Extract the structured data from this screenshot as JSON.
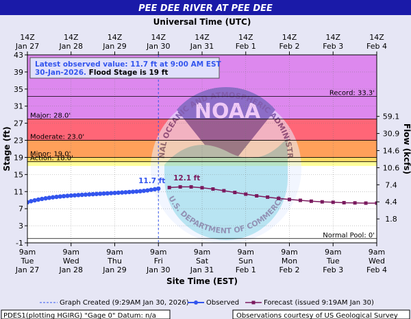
{
  "chart_data": {
    "type": "line",
    "title": "PEE DEE RIVER AT PEE DEE",
    "top_axis_title": "Universal Time (UTC)",
    "xlabel": "Site Time (EST)",
    "ylabel": "Stage (ft)",
    "y2label": "Flow (kcfs)",
    "ylim": [
      -1,
      43
    ],
    "yticks": [
      -1,
      3,
      7,
      11,
      15,
      19,
      23,
      27,
      31,
      35,
      39,
      43
    ],
    "flow_ticks": [
      {
        "stage": 4.6,
        "label": "1.8"
      },
      {
        "stage": 8.6,
        "label": "4.4"
      },
      {
        "stage": 12.6,
        "label": "7.4"
      },
      {
        "stage": 16.6,
        "label": "10.6"
      },
      {
        "stage": 20.6,
        "label": "14.6"
      },
      {
        "stage": 24.6,
        "label": "30.9"
      },
      {
        "stage": 28.6,
        "label": "59.1"
      }
    ],
    "bottom_ticks": [
      {
        "line1": "9am",
        "line2": "Tue",
        "line3": "Jan 27"
      },
      {
        "line1": "9am",
        "line2": "Wed",
        "line3": "Jan 28"
      },
      {
        "line1": "9am",
        "line2": "Thu",
        "line3": "Jan 29"
      },
      {
        "line1": "9am",
        "line2": "Fri",
        "line3": "Jan 30"
      },
      {
        "line1": "9am",
        "line2": "Sat",
        "line3": "Jan 31"
      },
      {
        "line1": "9am",
        "line2": "Sun",
        "line3": "Feb 1"
      },
      {
        "line1": "9am",
        "line2": "Mon",
        "line3": "Feb 2"
      },
      {
        "line1": "9am",
        "line2": "Tue",
        "line3": "Feb 3"
      },
      {
        "line1": "9am",
        "line2": "Wed",
        "line3": "Feb 4"
      }
    ],
    "top_ticks": [
      {
        "line1": "14Z",
        "line2": "Jan 27"
      },
      {
        "line1": "14Z",
        "line2": "Jan 28"
      },
      {
        "line1": "14Z",
        "line2": "Jan 29"
      },
      {
        "line1": "14Z",
        "line2": "Jan 30"
      },
      {
        "line1": "14Z",
        "line2": "Jan 31"
      },
      {
        "line1": "14Z",
        "line2": "Feb 1"
      },
      {
        "line1": "14Z",
        "line2": "Feb 2"
      },
      {
        "line1": "14Z",
        "line2": "Feb 3"
      },
      {
        "line1": "14Z",
        "line2": "Feb 4"
      }
    ],
    "bands": [
      {
        "name": "Record",
        "from": 28.0,
        "to": 43,
        "color": "#dd88ee"
      },
      {
        "name": "Major",
        "from": 23.0,
        "to": 28.0,
        "color": "#ff6677"
      },
      {
        "name": "Moderate",
        "from": 19.0,
        "to": 23.0,
        "color": "#ffa05a"
      },
      {
        "name": "Minor",
        "from": 18.0,
        "to": 19.0,
        "color": "#ffdd66"
      },
      {
        "name": "Action",
        "from": 17.0,
        "to": 18.0,
        "color": "#ffff99"
      }
    ],
    "thresholds": [
      {
        "label": "Record: 33.3'",
        "value": 33.3,
        "anchor": "right"
      },
      {
        "label": "Major: 28.0'",
        "value": 28.0,
        "anchor": "left"
      },
      {
        "label": "Moderate: 23.0'",
        "value": 23.0,
        "anchor": "left"
      },
      {
        "label": "Minor: 19.0'",
        "value": 19.0,
        "anchor": "left"
      },
      {
        "label": "Action: 18.0'",
        "value": 18.0,
        "anchor": "left"
      },
      {
        "label": "Normal Pool: 0'",
        "value": 0,
        "anchor": "right"
      }
    ],
    "current_time_day": 3.0,
    "series": [
      {
        "name": "Observed",
        "color": "#3355ee",
        "points": [
          [
            0.0,
            8.5
          ],
          [
            0.083,
            8.75
          ],
          [
            0.167,
            8.95
          ],
          [
            0.25,
            9.12
          ],
          [
            0.333,
            9.28
          ],
          [
            0.417,
            9.42
          ],
          [
            0.5,
            9.55
          ],
          [
            0.583,
            9.66
          ],
          [
            0.667,
            9.76
          ],
          [
            0.75,
            9.85
          ],
          [
            0.833,
            9.93
          ],
          [
            0.917,
            10.0
          ],
          [
            1.0,
            10.07
          ],
          [
            1.083,
            10.13
          ],
          [
            1.167,
            10.19
          ],
          [
            1.25,
            10.24
          ],
          [
            1.333,
            10.29
          ],
          [
            1.417,
            10.34
          ],
          [
            1.5,
            10.39
          ],
          [
            1.583,
            10.44
          ],
          [
            1.667,
            10.49
          ],
          [
            1.75,
            10.54
          ],
          [
            1.833,
            10.59
          ],
          [
            1.917,
            10.64
          ],
          [
            2.0,
            10.69
          ],
          [
            2.083,
            10.74
          ],
          [
            2.167,
            10.79
          ],
          [
            2.25,
            10.84
          ],
          [
            2.333,
            10.9
          ],
          [
            2.417,
            10.96
          ],
          [
            2.5,
            11.02
          ],
          [
            2.583,
            11.09
          ],
          [
            2.667,
            11.18
          ],
          [
            2.75,
            11.28
          ],
          [
            2.833,
            11.42
          ],
          [
            2.917,
            11.55
          ],
          [
            3.0,
            11.7
          ]
        ]
      },
      {
        "name": "Forecast",
        "color": "#7a1a5e",
        "points": [
          [
            3.25,
            11.95
          ],
          [
            3.5,
            12.1
          ],
          [
            3.75,
            12.1
          ],
          [
            4.0,
            11.9
          ],
          [
            4.25,
            11.6
          ],
          [
            4.5,
            11.2
          ],
          [
            4.75,
            10.8
          ],
          [
            5.0,
            10.4
          ],
          [
            5.25,
            10.0
          ],
          [
            5.5,
            9.7
          ],
          [
            5.75,
            9.4
          ],
          [
            6.0,
            9.15
          ],
          [
            6.25,
            8.95
          ],
          [
            6.5,
            8.75
          ],
          [
            6.75,
            8.6
          ],
          [
            7.0,
            8.5
          ],
          [
            7.25,
            8.4
          ],
          [
            7.5,
            8.35
          ],
          [
            7.75,
            8.3
          ],
          [
            8.0,
            8.3
          ]
        ]
      }
    ],
    "point_labels": [
      {
        "text": "11.7 ft",
        "day": 2.85,
        "value": 13.0,
        "color": "#3355ee"
      },
      {
        "text": "12.1 ft",
        "day": 3.65,
        "value": 13.6,
        "color": "#7a1a5e"
      }
    ],
    "info_box": {
      "line1": "Latest observed value: 11.7 ft at 9:00 AM EST",
      "line2_prefix": "30-Jan-2026.",
      "line2_suffix": " Flood Stage is 19 ft"
    },
    "legend": {
      "created": "Graph Created (9:29AM Jan 30, 2026)",
      "observed": "Observed",
      "forecast": "Forecast (issued 9:19AM Jan 30)"
    },
    "footer": {
      "left": "PDES1(plotting HGIRG) \"Gage 0\" Datum: n/a",
      "right": "Observations courtesy of US Geological Survey"
    },
    "watermark": {
      "top_text": "NATIONAL OCEANIC AND ATMOSPHERIC ADMINISTRATION",
      "bottom_text": "U.S. DEPARTMENT OF COMMERCE",
      "center": "NOAA"
    }
  }
}
